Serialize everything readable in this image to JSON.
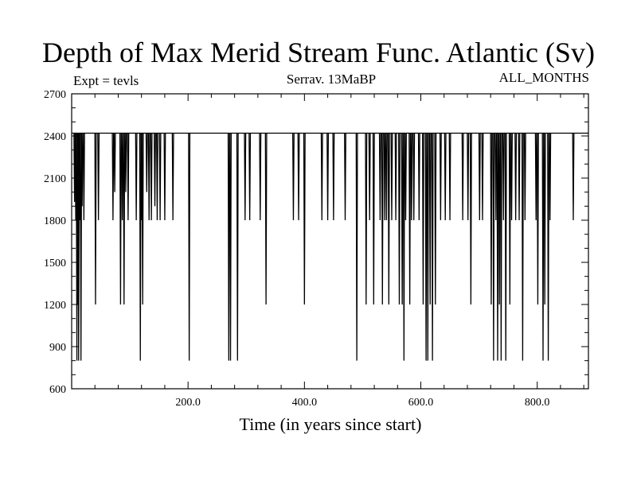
{
  "chart_data": {
    "type": "line",
    "title": "Depth of Max Merid Stream Func. Atlantic (Sv)",
    "annotations": {
      "left": "Expt = tevls",
      "center": "Serrav.   13MaBP",
      "right": "ALL_MONTHS"
    },
    "xlabel": "Time (in years since start)",
    "ylabel": "",
    "xlim": [
      0,
      888
    ],
    "ylim": [
      600,
      2700
    ],
    "xticks": [
      200,
      400,
      600,
      800
    ],
    "xtick_labels": [
      "200.0",
      "400.0",
      "600.0",
      "800.0"
    ],
    "yticks": [
      600,
      900,
      1200,
      1500,
      1800,
      2100,
      2400,
      2700
    ],
    "ytick_labels": [
      "600",
      "900",
      "1200",
      "1500",
      "1800",
      "2100",
      "2400",
      "2700"
    ],
    "grid": false,
    "baseline": 2420,
    "series": [
      {
        "x": [
          5,
          7,
          9,
          11,
          12,
          14,
          16,
          18,
          21,
          41,
          46,
          71,
          74,
          84,
          87,
          90,
          93,
          97,
          111,
          118,
          120,
          122,
          129,
          133,
          137,
          143,
          147,
          152,
          160,
          174,
          202,
          270,
          273,
          285,
          298,
          306,
          324,
          334,
          381,
          390,
          400,
          430,
          440,
          450,
          470,
          490,
          506,
          512,
          519,
          530,
          534,
          538,
          541,
          545,
          550,
          557,
          563,
          568,
          571,
          574,
          581,
          584,
          588,
          597,
          604,
          609,
          612,
          616,
          620,
          625,
          634,
          642,
          650,
          672,
          681,
          686,
          701,
          706,
          721,
          725,
          729,
          732,
          735,
          738,
          742,
          746,
          753,
          756,
          763,
          769,
          775,
          779,
          798,
          801,
          810,
          813,
          819,
          822,
          862
        ],
        "y": [
          1930,
          1800,
          800,
          1200,
          800,
          1800,
          800,
          1900,
          1800,
          1200,
          1800,
          1800,
          2000,
          1200,
          1800,
          1200,
          2000,
          1800,
          1800,
          800,
          1800,
          1200,
          2000,
          1800,
          1800,
          1900,
          1800,
          1800,
          1800,
          1800,
          800,
          800,
          800,
          800,
          1800,
          1800,
          1800,
          1200,
          1800,
          1800,
          1200,
          1800,
          1800,
          1800,
          1800,
          800,
          1200,
          1800,
          1200,
          1800,
          1200,
          1800,
          1800,
          1200,
          1800,
          1800,
          1200,
          1200,
          800,
          1800,
          1200,
          1800,
          1800,
          1800,
          1200,
          800,
          800,
          1200,
          800,
          1200,
          1800,
          1800,
          1800,
          1800,
          1800,
          1200,
          1800,
          1800,
          1200,
          800,
          1800,
          800,
          1200,
          800,
          1800,
          800,
          1200,
          1800,
          1800,
          1800,
          800,
          1800,
          1800,
          1200,
          800,
          1200,
          800,
          1800,
          1800
        ]
      }
    ]
  }
}
